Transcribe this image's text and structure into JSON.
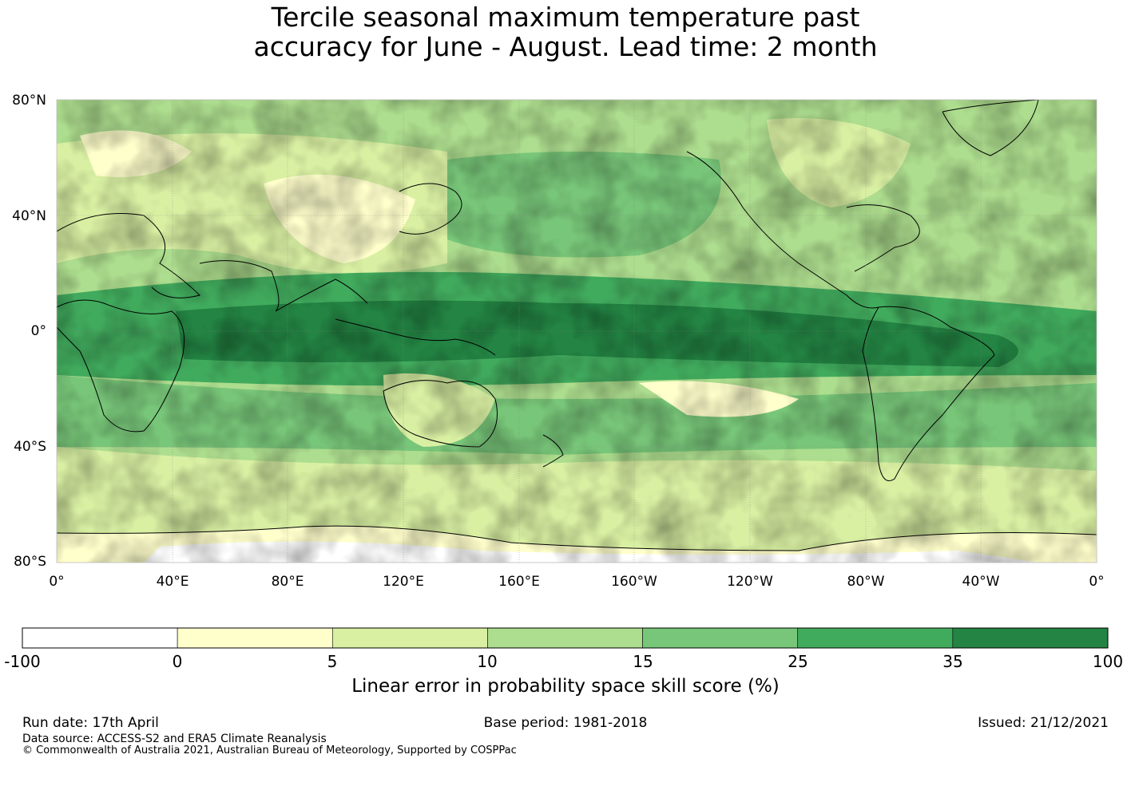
{
  "title": {
    "line1": "Tercile seasonal maximum temperature past",
    "line2": "accuracy for June - August. Lead time: 2 month"
  },
  "map": {
    "lat_labels": [
      "80°N",
      "40°N",
      "0°",
      "40°S",
      "80°S"
    ],
    "lon_labels": [
      "0°",
      "40°E",
      "80°E",
      "120°E",
      "160°E",
      "160°W",
      "120°W",
      "80°W",
      "40°W",
      "0°"
    ],
    "lat_range": [
      -80,
      80
    ],
    "lon_range": [
      0,
      360
    ],
    "gridlines": true
  },
  "colorbar": {
    "title": "Linear error in probability space skill score (%)",
    "ticks": [
      "-100",
      "0",
      "5",
      "10",
      "15",
      "25",
      "35",
      "100"
    ],
    "colors": [
      "#ffffff",
      "#ffffcc",
      "#d9f0a3",
      "#addd8e",
      "#78c679",
      "#41ab5d",
      "#238443"
    ]
  },
  "footer": {
    "run_date": "Run date: 17th April",
    "base_period": "Base period: 1981-2018",
    "issued": "Issued: 21/12/2021",
    "data_source": "Data source: ACCESS-S2 and ERA5 Climate Reanalysis",
    "copyright": "© Commonwealth of Australia 2021, Australian Bureau of Meteorology, Supported by COSPPac"
  }
}
